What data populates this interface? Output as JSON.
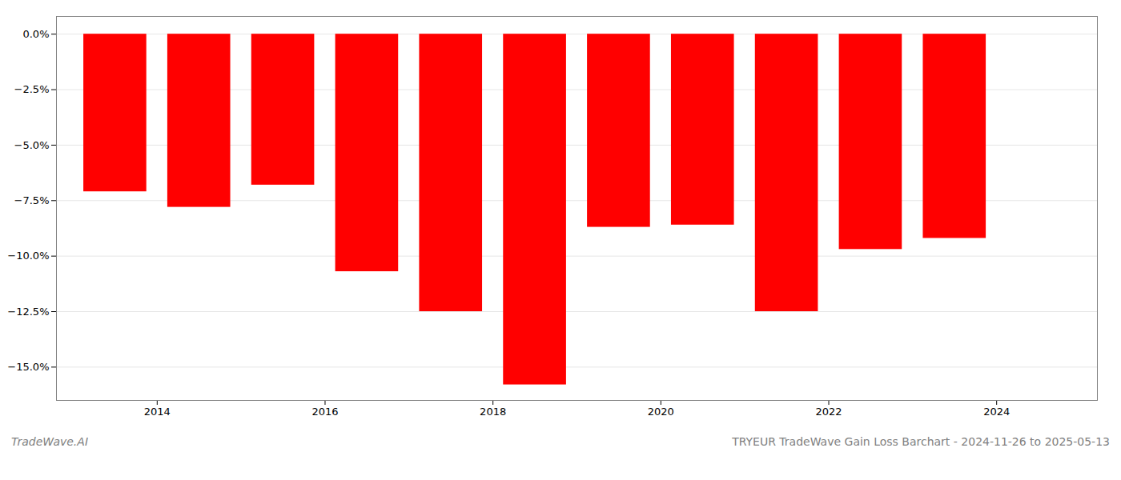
{
  "chart_data": {
    "type": "bar",
    "x": [
      2013.5,
      2014.5,
      2015.5,
      2016.5,
      2017.5,
      2018.5,
      2019.5,
      2020.5,
      2021.5,
      2022.5,
      2023.5
    ],
    "values": [
      -7.1,
      -7.8,
      -6.8,
      -10.7,
      -12.5,
      -15.8,
      -8.7,
      -8.6,
      -12.5,
      -9.7,
      -9.2
    ],
    "color": "#ff0000",
    "xlim": [
      2012.8,
      2025.2
    ],
    "xticks": [
      2014,
      2016,
      2018,
      2020,
      2022,
      2024
    ],
    "ylim": [
      -16.5,
      0.8
    ],
    "yticks": [
      {
        "value": 0.0,
        "label": "0.0%"
      },
      {
        "value": -2.5,
        "label": "−2.5%"
      },
      {
        "value": -5.0,
        "label": "−5.0%"
      },
      {
        "value": -7.5,
        "label": "−7.5%"
      },
      {
        "value": -10.0,
        "label": "−10.0%"
      },
      {
        "value": -12.5,
        "label": "−12.5%"
      },
      {
        "value": -15.0,
        "label": "−15.0%"
      }
    ],
    "grid": "y",
    "annotations": [
      "TradeWave.AI",
      "TRYEUR TradeWave Gain Loss Barchart - 2024-11-26 to 2025-05-13"
    ]
  }
}
